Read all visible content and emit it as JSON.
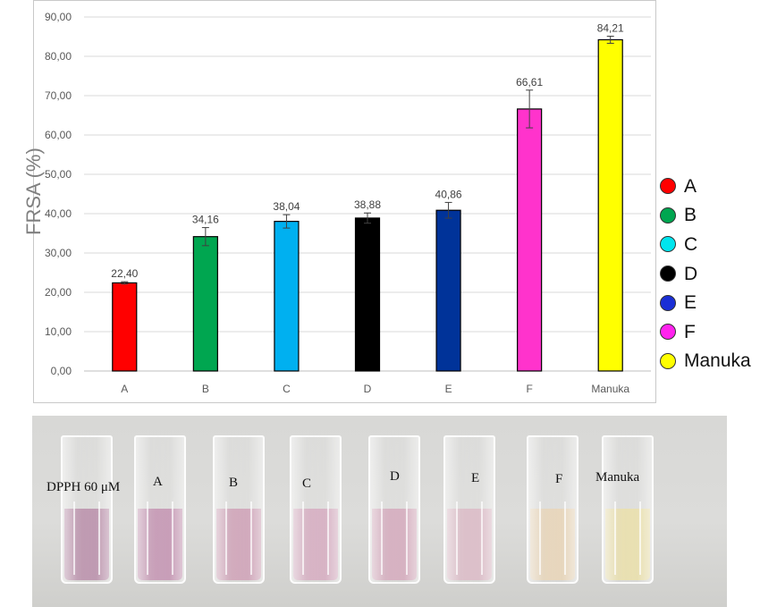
{
  "chart_data": {
    "type": "bar",
    "categories": [
      "A",
      "B",
      "C",
      "D",
      "E",
      "F",
      "Manuka"
    ],
    "values": [
      22.4,
      34.16,
      38.04,
      38.88,
      40.86,
      66.61,
      84.21
    ],
    "value_labels": [
      "22,40",
      "34,16",
      "38,04",
      "38,88",
      "40,86",
      "66,61",
      "84,21"
    ],
    "error": [
      0.3,
      2.3,
      1.7,
      1.3,
      2.0,
      4.8,
      0.9
    ],
    "colors": [
      "#ff0000",
      "#00a650",
      "#00b0f0",
      "#000000",
      "#003399",
      "#ff33cc",
      "#ffff00"
    ],
    "ylabel": "FRSA (%)",
    "xlabel": "",
    "ylim": [
      0,
      90
    ],
    "yticks": [
      "0,00",
      "10,00",
      "20,00",
      "30,00",
      "40,00",
      "50,00",
      "60,00",
      "70,00",
      "80,00",
      "90,00"
    ],
    "grid": true,
    "legend_position": "right"
  },
  "legend": {
    "items": [
      {
        "label": "A",
        "color": "#ff0000"
      },
      {
        "label": "B",
        "color": "#00a650"
      },
      {
        "label": "C",
        "color": "#00e5ee"
      },
      {
        "label": "D",
        "color": "#000000"
      },
      {
        "label": "E",
        "color": "#1a2fd6"
      },
      {
        "label": "F",
        "color": "#ff22ee"
      },
      {
        "label": "Manuka",
        "color": "#ffff00"
      }
    ]
  },
  "photo": {
    "cuvettes": [
      {
        "label": "DPPH 60 μM",
        "liquid": "#b68aa6"
      },
      {
        "label": "A",
        "liquid": "#c18fae"
      },
      {
        "label": "B",
        "liquid": "#cc9db3"
      },
      {
        "label": "C",
        "liquid": "#d3a8bd"
      },
      {
        "label": "D",
        "liquid": "#d2a6b9"
      },
      {
        "label": "E",
        "liquid": "#d9b7c3"
      },
      {
        "label": "F",
        "liquid": "#e6d2b4"
      },
      {
        "label": "Manuka",
        "liquid": "#e8dda6"
      }
    ]
  }
}
